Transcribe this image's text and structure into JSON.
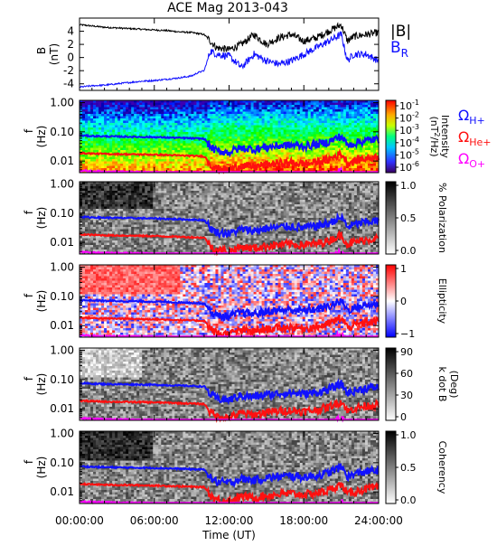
{
  "title": "ACE Mag 2013-043",
  "colors": {
    "B_total": "#000000",
    "B_R": "#1010ff",
    "H": "#1010ff",
    "He": "#ff1010",
    "O": "#ff00ff"
  },
  "chart_data": [
    {
      "type": "line",
      "id": "b-field",
      "ylabel": "B",
      "yunit": "(nT)",
      "ylim": [
        -5,
        6
      ],
      "yticks": [
        "4",
        "2",
        "0",
        "-2",
        "-4"
      ],
      "ytick_values": [
        4,
        2,
        0,
        -2,
        -4
      ],
      "series": [
        {
          "name": "|B|",
          "color": "#000000",
          "x": [
            0,
            1,
            2,
            3,
            4,
            5,
            6,
            7,
            8,
            9,
            10,
            10.5,
            11,
            12,
            13,
            14,
            15,
            16,
            17,
            18,
            19,
            20,
            21,
            21.5,
            22,
            23,
            24
          ],
          "y": [
            5.0,
            4.8,
            4.6,
            4.5,
            4.4,
            4.3,
            4.2,
            4.1,
            3.9,
            3.8,
            3.5,
            2.5,
            1.5,
            1.2,
            2.0,
            3.5,
            2.0,
            3.0,
            3.5,
            2.5,
            3.0,
            4.0,
            5.0,
            2.5,
            3.2,
            3.5,
            3.8
          ]
        },
        {
          "name": "B_R",
          "color": "#1010ff",
          "x": [
            0,
            1,
            2,
            3,
            4,
            5,
            6,
            7,
            8,
            9,
            9.5,
            10,
            10.5,
            11,
            12,
            13,
            14,
            15,
            16,
            17,
            18,
            19,
            20,
            21,
            21.5,
            22,
            23,
            24
          ],
          "y": [
            -4.5,
            -4.3,
            -4.2,
            -4.0,
            -3.8,
            -3.6,
            -3.5,
            -3.3,
            -3.1,
            -2.8,
            -2.3,
            -2.0,
            1.0,
            0.5,
            0.2,
            -1.5,
            0.5,
            -0.5,
            -1.0,
            -0.5,
            0.5,
            1.5,
            2.5,
            3.5,
            -0.5,
            0.5,
            0.5,
            -0.5
          ]
        }
      ]
    },
    {
      "type": "heatmap",
      "id": "intensity",
      "ylabel": "f",
      "yunit": "(Hz)",
      "scale": "log",
      "ylim": [
        0.004,
        1.2
      ],
      "yticks": [
        "1.00",
        "0.10",
        "0.01"
      ],
      "ytick_values": [
        1.0,
        0.1,
        0.01
      ],
      "colorbar": {
        "label": "Intensity",
        "unit_prefix": "(nT",
        "unit_exp": "2",
        "unit_suffix": "/Hz)",
        "ticks": [
          {
            "base": "10",
            "exp": "-1"
          },
          {
            "base": "10",
            "exp": "-2"
          },
          {
            "base": "10",
            "exp": "-3"
          },
          {
            "base": "10",
            "exp": "-4"
          },
          {
            "base": "10",
            "exp": "-5"
          },
          {
            "base": "10",
            "exp": "-6"
          }
        ]
      },
      "legend": [
        {
          "symbol": "Ω",
          "sub": "H+",
          "color": "#1010ff"
        },
        {
          "symbol": "Ω",
          "sub": "He+",
          "color": "#ff1010"
        },
        {
          "symbol": "Ω",
          "sub": "O+",
          "color": "#ff00ff"
        }
      ]
    },
    {
      "type": "heatmap",
      "id": "polarization",
      "ylabel": "f",
      "yunit": "(Hz)",
      "scale": "log",
      "ylim": [
        0.004,
        1.2
      ],
      "yticks": [
        "1.00",
        "0.10",
        "0.01"
      ],
      "ytick_values": [
        1.0,
        0.1,
        0.01
      ],
      "colorbar": {
        "label": "% Polarization",
        "ticks": [
          "1.0",
          "0.5",
          "0.0"
        ]
      }
    },
    {
      "type": "heatmap",
      "id": "ellipticity",
      "ylabel": "f",
      "yunit": "(Hz)",
      "scale": "log",
      "ylim": [
        0.004,
        1.2
      ],
      "yticks": [
        "1.00",
        "0.10",
        "0.01"
      ],
      "ytick_values": [
        1.0,
        0.1,
        0.01
      ],
      "colorbar": {
        "label": "Ellipticity",
        "ticks": [
          "1",
          "0",
          "−1"
        ]
      }
    },
    {
      "type": "heatmap",
      "id": "kdotb",
      "ylabel": "f",
      "yunit": "(Hz)",
      "scale": "log",
      "ylim": [
        0.004,
        1.2
      ],
      "yticks": [
        "1.00",
        "0.10",
        "0.01"
      ],
      "ytick_values": [
        1.0,
        0.1,
        0.01
      ],
      "colorbar": {
        "label": "k dot B",
        "unit": "(Deg)",
        "ticks": [
          "90",
          "60",
          "30",
          "0"
        ]
      }
    },
    {
      "type": "heatmap",
      "id": "coherency",
      "ylabel": "f",
      "yunit": "(Hz)",
      "scale": "log",
      "ylim": [
        0.004,
        1.2
      ],
      "yticks": [
        "1.00",
        "0.10",
        "0.01"
      ],
      "ytick_values": [
        1.0,
        0.1,
        0.01
      ],
      "colorbar": {
        "label": "Coherency",
        "ticks": [
          "1.0",
          "0.5",
          "0.0"
        ]
      }
    }
  ],
  "gyrofrequency_lines": {
    "x": [
      0,
      1,
      2,
      3,
      4,
      5,
      6,
      7,
      8,
      9,
      10,
      10.5,
      11,
      12,
      13,
      14,
      15,
      16,
      17,
      18,
      19,
      20,
      21,
      21.5,
      22,
      23,
      24
    ],
    "H_hz": [
      0.075,
      0.072,
      0.07,
      0.069,
      0.068,
      0.067,
      0.066,
      0.064,
      0.062,
      0.06,
      0.058,
      0.03,
      0.022,
      0.02,
      0.028,
      0.025,
      0.03,
      0.033,
      0.035,
      0.032,
      0.036,
      0.045,
      0.07,
      0.033,
      0.04,
      0.05,
      0.055
    ]
  },
  "x_axis": {
    "label": "Time (UT)",
    "range": [
      0,
      24
    ],
    "ticks": [
      "00:00:00",
      "06:00:00",
      "12:00:00",
      "18:00:00",
      "24:00:00"
    ],
    "tick_values": [
      0,
      6,
      12,
      18,
      24
    ]
  },
  "legend_top": {
    "btotal": "|B|",
    "br_base": "B",
    "br_sub": "R"
  }
}
